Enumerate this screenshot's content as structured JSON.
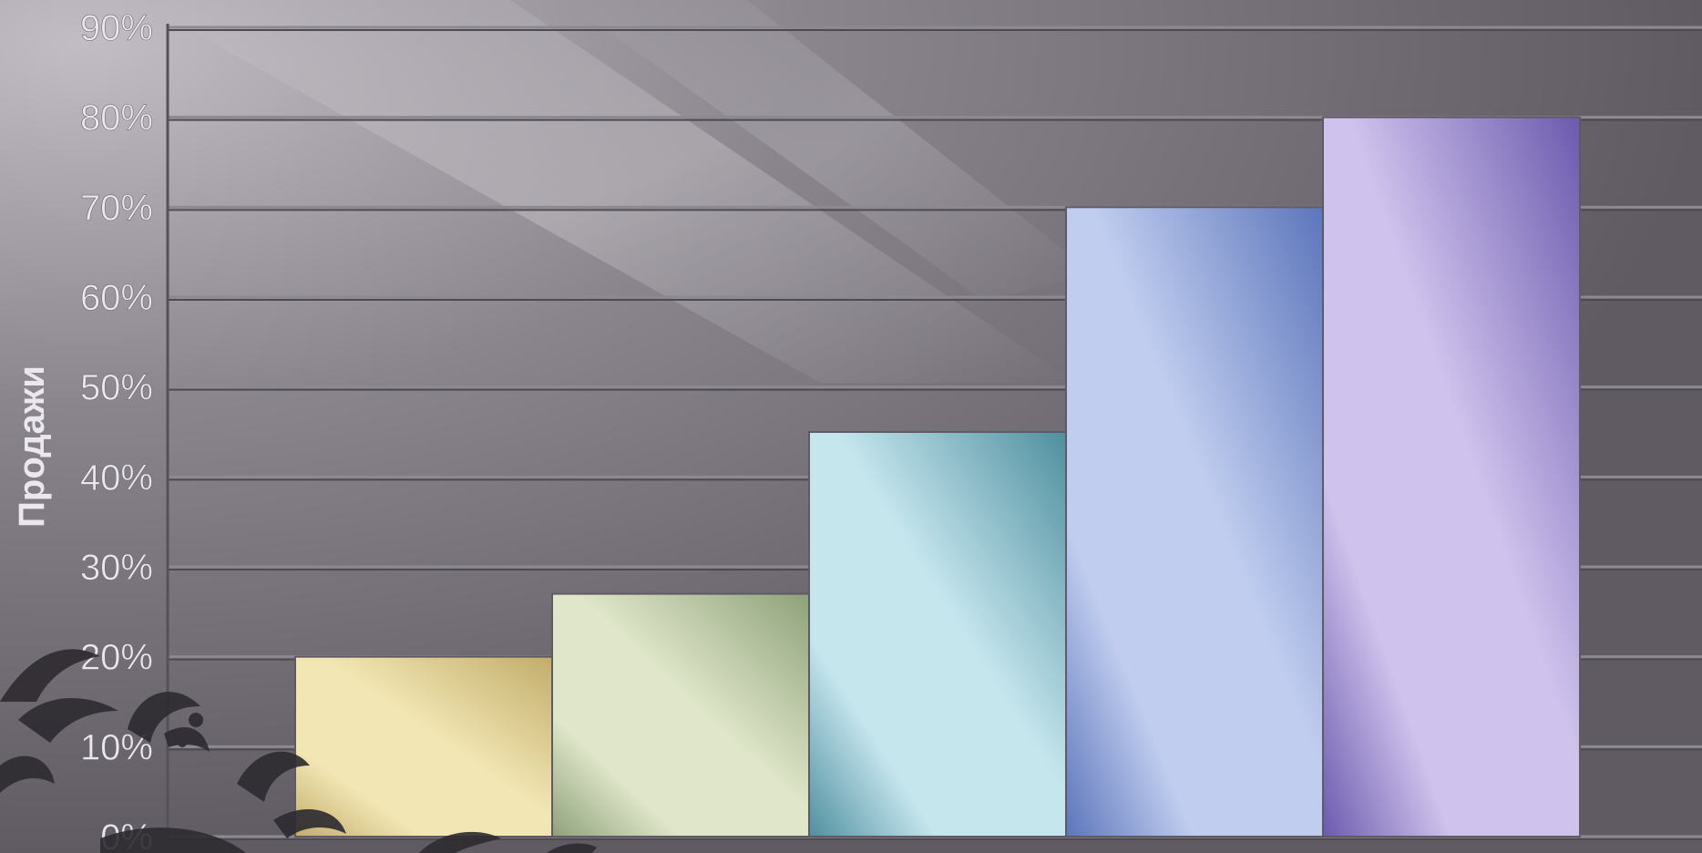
{
  "chart_data": {
    "type": "bar",
    "title": "",
    "xlabel": "",
    "ylabel": "Продажи",
    "ylim": [
      0,
      90
    ],
    "yticks": [
      "0%",
      "10%",
      "20%",
      "30%",
      "40%",
      "50%",
      "60%",
      "70%",
      "80%",
      "90%"
    ],
    "categories": [
      "",
      "",
      "",
      "",
      ""
    ],
    "values": [
      20,
      27,
      45,
      70,
      80
    ],
    "grid": true,
    "legend": "none",
    "bar_colors": [
      [
        "#f2e6b4",
        "#c2ad6a"
      ],
      [
        "#dfe6c9",
        "#8ea17a"
      ],
      [
        "#c6e6ee",
        "#4f8f9f"
      ],
      [
        "#c0cdef",
        "#5c75bb"
      ],
      [
        "#cfc2ec",
        "#6b5aae"
      ]
    ],
    "background_color": "#6a656c",
    "gridline_color": "#8d8991",
    "text_color": "#ebe7ee"
  }
}
